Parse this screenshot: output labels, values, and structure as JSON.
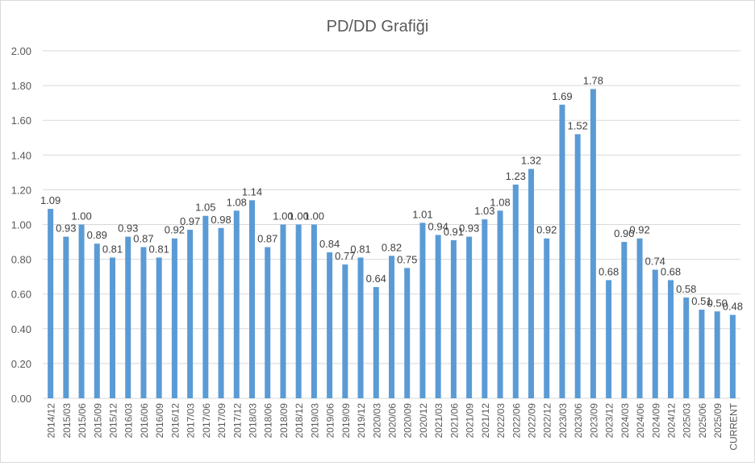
{
  "chart_data": {
    "type": "bar",
    "title": "PD/DD Grafiği",
    "xlabel": "",
    "ylabel": "",
    "ylim": [
      0,
      2
    ],
    "yticks": [
      "0.00",
      "0.20",
      "0.40",
      "0.60",
      "0.80",
      "1.00",
      "1.20",
      "1.40",
      "1.60",
      "1.80",
      "2.00"
    ],
    "grid": true,
    "color": "#5b9bd5",
    "categories": [
      "2014/12",
      "2015/03",
      "2015/06",
      "2015/09",
      "2015/12",
      "2016/03",
      "2016/06",
      "2016/09",
      "2016/12",
      "2017/03",
      "2017/06",
      "2017/09",
      "2017/12",
      "2018/03",
      "2018/06",
      "2018/09",
      "2018/12",
      "2019/03",
      "2019/06",
      "2019/09",
      "2019/12",
      "2020/03",
      "2020/06",
      "2020/09",
      "2020/12",
      "2021/03",
      "2021/06",
      "2021/09",
      "2021/12",
      "2022/03",
      "2022/06",
      "2022/09",
      "2022/12",
      "2023/03",
      "2023/06",
      "2023/09",
      "2023/12",
      "2024/03",
      "2024/06",
      "2024/09",
      "2024/12",
      "2025/03",
      "2025/06",
      "2025/09",
      "CURRENT"
    ],
    "values": [
      1.09,
      0.93,
      1.0,
      0.89,
      0.81,
      0.93,
      0.87,
      0.81,
      0.92,
      0.97,
      1.05,
      0.98,
      1.08,
      1.14,
      0.87,
      1.0,
      1.0,
      1.0,
      0.84,
      0.77,
      0.81,
      0.64,
      0.82,
      0.75,
      1.01,
      0.94,
      0.91,
      0.93,
      1.03,
      1.08,
      1.23,
      1.32,
      0.92,
      1.69,
      1.52,
      1.78,
      0.68,
      0.9,
      0.92,
      0.74,
      0.68,
      0.58,
      0.51,
      0.5,
      0.48
    ]
  }
}
